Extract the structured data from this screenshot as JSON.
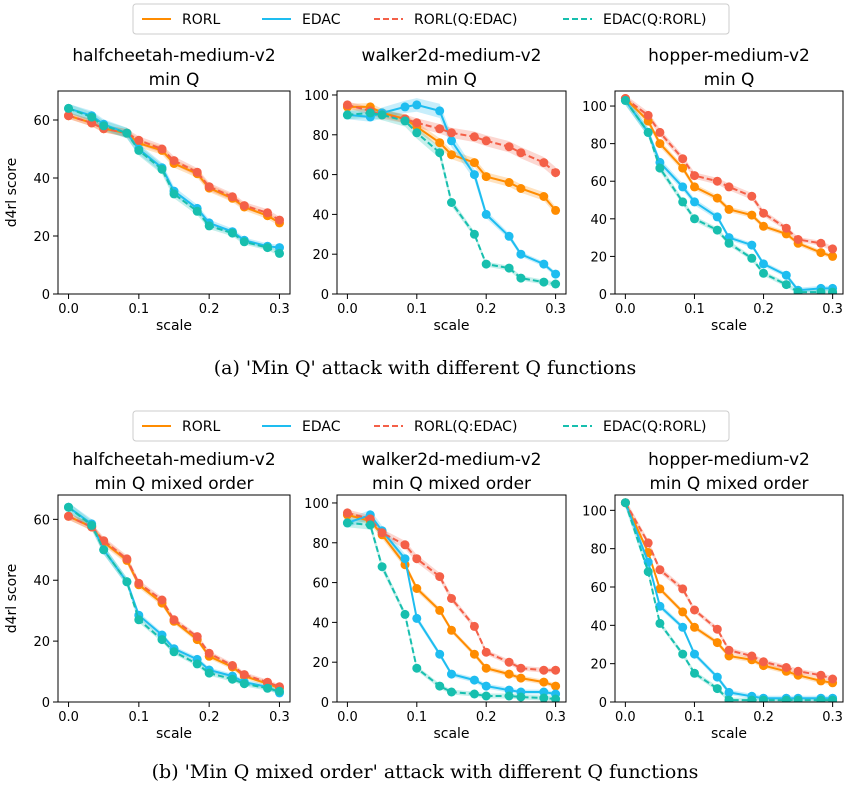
{
  "legend": {
    "entries": [
      {
        "label": "RORL",
        "color": "#ff8c00",
        "dashed": false
      },
      {
        "label": "EDAC",
        "color": "#1ebdf0",
        "dashed": false
      },
      {
        "label": "RORL(Q:EDAC)",
        "color": "#f46048",
        "dashed": true
      },
      {
        "label": "EDAC(Q:RORL)",
        "color": "#17bfae",
        "dashed": true
      }
    ]
  },
  "captions": {
    "a": "(a)  'Min Q' attack with different Q functions",
    "b": "(b)  'Min Q mixed order' attack with different Q functions"
  },
  "chart_data": [
    {
      "type": "line",
      "title": [
        "halfcheetah-medium-v2",
        "min Q"
      ],
      "xlabel": "scale",
      "ylabel": "d4rl score",
      "xlim": [
        -0.015,
        0.315
      ],
      "ylim": [
        0,
        70
      ],
      "xticks": [
        0.0,
        0.1,
        0.2,
        0.3
      ],
      "yticks": [
        0,
        20,
        40,
        60
      ],
      "x": [
        0.0,
        0.033,
        0.05,
        0.083,
        0.1,
        0.133,
        0.15,
        0.183,
        0.2,
        0.233,
        0.25,
        0.283,
        0.3
      ],
      "series": [
        {
          "name": "RORL",
          "values": [
            61.5,
            59.0,
            57.0,
            55.5,
            52.0,
            49.5,
            45.0,
            41.5,
            36.5,
            33.0,
            30.0,
            27.0,
            24.5
          ]
        },
        {
          "name": "EDAC",
          "values": [
            64.0,
            61.5,
            58.5,
            55.5,
            50.0,
            43.5,
            35.5,
            29.5,
            24.5,
            21.5,
            18.5,
            16.5,
            16.0
          ]
        },
        {
          "name": "RORL(Q:EDAC)",
          "values": [
            61.5,
            59.0,
            57.0,
            55.5,
            53.0,
            50.0,
            46.0,
            42.0,
            37.0,
            33.5,
            30.5,
            28.0,
            25.5
          ]
        },
        {
          "name": "EDAC(Q:RORL)",
          "values": [
            64.0,
            61.0,
            58.0,
            55.5,
            49.5,
            43.0,
            34.5,
            28.5,
            23.5,
            21.0,
            18.0,
            16.0,
            14.0
          ]
        }
      ]
    },
    {
      "type": "line",
      "title": [
        "walker2d-medium-v2",
        "min Q"
      ],
      "xlabel": "scale",
      "ylabel": "",
      "xlim": [
        -0.015,
        0.315
      ],
      "ylim": [
        0,
        102
      ],
      "xticks": [
        0.0,
        0.1,
        0.2,
        0.3
      ],
      "yticks": [
        0,
        20,
        40,
        60,
        80,
        100
      ],
      "x": [
        0.0,
        0.033,
        0.05,
        0.083,
        0.1,
        0.133,
        0.15,
        0.183,
        0.2,
        0.233,
        0.25,
        0.283,
        0.3
      ],
      "series": [
        {
          "name": "RORL",
          "values": [
            94.0,
            94.0,
            91.0,
            88.0,
            84.0,
            76.0,
            70.0,
            66.0,
            59.0,
            56.0,
            53.0,
            49.0,
            42.0
          ]
        },
        {
          "name": "EDAC",
          "values": [
            90.0,
            89.0,
            91.0,
            94.0,
            95.0,
            92.0,
            77.0,
            60.0,
            40.0,
            29.0,
            20.0,
            15.0,
            10.0
          ]
        },
        {
          "name": "RORL(Q:EDAC)",
          "values": [
            95.0,
            92.0,
            90.0,
            88.0,
            86.0,
            83.0,
            81.0,
            79.0,
            77.0,
            74.0,
            71.0,
            66.0,
            61.0
          ]
        },
        {
          "name": "EDAC(Q:RORL)",
          "values": [
            90.0,
            91.0,
            90.0,
            87.0,
            81.0,
            71.0,
            46.0,
            30.0,
            15.0,
            13.0,
            8.0,
            6.0,
            5.0
          ]
        }
      ]
    },
    {
      "type": "line",
      "title": [
        "hopper-medium-v2",
        "min Q"
      ],
      "xlabel": "scale",
      "ylabel": "",
      "xlim": [
        -0.015,
        0.315
      ],
      "ylim": [
        0,
        108
      ],
      "xticks": [
        0.0,
        0.1,
        0.2,
        0.3
      ],
      "yticks": [
        0,
        20,
        40,
        60,
        80,
        100
      ],
      "x": [
        0.0,
        0.033,
        0.05,
        0.083,
        0.1,
        0.133,
        0.15,
        0.183,
        0.2,
        0.233,
        0.25,
        0.283,
        0.3
      ],
      "series": [
        {
          "name": "RORL",
          "values": [
            104.0,
            92.0,
            80.0,
            67.0,
            57.0,
            51.0,
            45.0,
            42.0,
            36.0,
            32.0,
            27.0,
            22.0,
            20.0
          ]
        },
        {
          "name": "EDAC",
          "values": [
            103.0,
            86.0,
            70.0,
            57.0,
            49.0,
            41.0,
            30.0,
            26.0,
            16.0,
            10.0,
            2.0,
            3.0,
            3.0
          ]
        },
        {
          "name": "RORL(Q:EDAC)",
          "values": [
            104.0,
            95.0,
            86.0,
            72.0,
            63.0,
            60.0,
            57.0,
            52.0,
            43.0,
            35.0,
            29.0,
            27.0,
            24.0
          ]
        },
        {
          "name": "EDAC(Q:RORL)",
          "values": [
            103.0,
            86.0,
            67.0,
            49.0,
            40.0,
            34.0,
            27.0,
            19.0,
            11.0,
            5.0,
            1.0,
            1.0,
            1.0
          ]
        }
      ]
    },
    {
      "type": "line",
      "title": [
        "halfcheetah-medium-v2",
        "min Q mixed order"
      ],
      "xlabel": "scale",
      "ylabel": "d4rl score",
      "xlim": [
        -0.015,
        0.315
      ],
      "ylim": [
        0,
        68
      ],
      "xticks": [
        0.0,
        0.1,
        0.2,
        0.3
      ],
      "yticks": [
        0,
        20,
        40,
        60
      ],
      "x": [
        0.0,
        0.033,
        0.05,
        0.083,
        0.1,
        0.133,
        0.15,
        0.183,
        0.2,
        0.233,
        0.25,
        0.283,
        0.3
      ],
      "series": [
        {
          "name": "RORL",
          "values": [
            61.0,
            57.5,
            52.5,
            46.5,
            38.5,
            32.5,
            26.5,
            20.5,
            15.0,
            11.5,
            8.5,
            6.0,
            4.5
          ]
        },
        {
          "name": "EDAC",
          "values": [
            64.0,
            58.5,
            50.0,
            39.5,
            28.5,
            22.0,
            17.5,
            14.0,
            10.5,
            8.5,
            6.5,
            5.0,
            3.0
          ]
        },
        {
          "name": "RORL(Q:EDAC)",
          "values": [
            61.0,
            57.5,
            53.0,
            47.0,
            39.0,
            33.5,
            27.0,
            21.5,
            16.0,
            12.0,
            9.0,
            6.5,
            5.0
          ]
        },
        {
          "name": "EDAC(Q:RORL)",
          "values": [
            64.0,
            58.0,
            50.0,
            39.5,
            27.0,
            20.5,
            16.5,
            12.5,
            9.5,
            7.5,
            6.0,
            4.5,
            3.5
          ]
        }
      ]
    },
    {
      "type": "line",
      "title": [
        "walker2d-medium-v2",
        "min Q mixed order"
      ],
      "xlabel": "scale",
      "ylabel": "",
      "xlim": [
        -0.015,
        0.315
      ],
      "ylim": [
        0,
        104
      ],
      "xticks": [
        0.0,
        0.1,
        0.2,
        0.3
      ],
      "yticks": [
        0,
        20,
        40,
        60,
        80,
        100
      ],
      "x": [
        0.0,
        0.033,
        0.05,
        0.083,
        0.1,
        0.133,
        0.15,
        0.183,
        0.2,
        0.233,
        0.25,
        0.283,
        0.3
      ],
      "series": [
        {
          "name": "RORL",
          "values": [
            94.0,
            91.0,
            84.0,
            69.0,
            57.0,
            46.0,
            36.0,
            24.0,
            17.0,
            14.0,
            12.0,
            10.0,
            8.0
          ]
        },
        {
          "name": "EDAC",
          "values": [
            90.0,
            94.0,
            86.0,
            72.0,
            42.0,
            24.0,
            14.0,
            11.0,
            8.0,
            6.0,
            5.0,
            5.0,
            4.0
          ]
        },
        {
          "name": "RORL(Q:EDAC)",
          "values": [
            95.0,
            92.0,
            85.0,
            79.0,
            72.0,
            63.0,
            52.0,
            38.0,
            25.0,
            20.0,
            17.0,
            16.0,
            16.0
          ]
        },
        {
          "name": "EDAC(Q:RORL)",
          "values": [
            90.0,
            89.0,
            68.0,
            44.0,
            17.0,
            8.0,
            5.0,
            4.0,
            3.0,
            3.0,
            2.5,
            2.0,
            1.5
          ]
        }
      ]
    },
    {
      "type": "line",
      "title": [
        "hopper-medium-v2",
        "min Q mixed order"
      ],
      "xlabel": "scale",
      "ylabel": "",
      "xlim": [
        -0.015,
        0.315
      ],
      "ylim": [
        0,
        108
      ],
      "xticks": [
        0.0,
        0.1,
        0.2,
        0.3
      ],
      "yticks": [
        0,
        20,
        40,
        60,
        80,
        100
      ],
      "x": [
        0.0,
        0.033,
        0.05,
        0.083,
        0.1,
        0.133,
        0.15,
        0.183,
        0.2,
        0.233,
        0.25,
        0.283,
        0.3
      ],
      "series": [
        {
          "name": "RORL",
          "values": [
            104.0,
            78.0,
            59.0,
            47.0,
            39.0,
            31.0,
            24.0,
            22.0,
            19.0,
            16.0,
            14.0,
            11.0,
            10.0
          ]
        },
        {
          "name": "EDAC",
          "values": [
            104.0,
            73.0,
            50.0,
            39.0,
            25.0,
            13.0,
            5.0,
            3.0,
            2.0,
            2.0,
            2.0,
            2.0,
            2.0
          ]
        },
        {
          "name": "RORL(Q:EDAC)",
          "values": [
            104.0,
            83.0,
            69.0,
            59.0,
            48.0,
            38.0,
            27.0,
            24.0,
            21.0,
            18.0,
            16.0,
            14.0,
            12.0
          ]
        },
        {
          "name": "EDAC(Q:RORL)",
          "values": [
            104.0,
            68.0,
            41.0,
            25.0,
            15.0,
            7.0,
            1.0,
            1.0,
            1.0,
            1.0,
            1.0,
            1.0,
            1.0
          ]
        }
      ]
    }
  ]
}
